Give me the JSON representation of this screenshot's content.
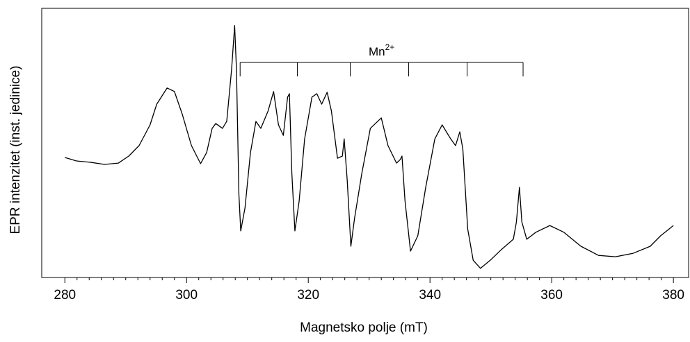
{
  "chart_data": {
    "type": "line",
    "x_label": "Magnetsko polje (mT)",
    "y_label": "EPR intenzitet (inst. jedinice)",
    "x": [
      280,
      281.9,
      284.2,
      286.5,
      288.8,
      290.5,
      292.2,
      294.0,
      295.1,
      296.8,
      298,
      299.3,
      300.8,
      302.3,
      303.3,
      304.2,
      304.8,
      305.9,
      306.6,
      307.4,
      307.9,
      308.2,
      308.6,
      308.9,
      309.6,
      310.5,
      311.4,
      312.2,
      313.4,
      314.3,
      315.1,
      315.9,
      316.6,
      316.9,
      317.3,
      317.8,
      318.5,
      319.4,
      320.6,
      321.4,
      322.2,
      323.1,
      323.8,
      324.8,
      325.6,
      325.9,
      326.4,
      327,
      327.6,
      328.8,
      330.2,
      332,
      333.1,
      334.5,
      335.1,
      335.4,
      335.9,
      336.8,
      338,
      339.3,
      340.8,
      342,
      343.4,
      344.2,
      344.9,
      345.4,
      346.2,
      347.1,
      348.3,
      349.9,
      351.7,
      353.7,
      354.2,
      354.7,
      355.1,
      355.9,
      357.4,
      359.7,
      362,
      364.8,
      367.7,
      370.5,
      373.4,
      376.2,
      377.9,
      380
    ],
    "series": [
      {
        "color": "#000000",
        "values": [
          44.6,
          43.3,
          42.8,
          42.0,
          42.5,
          45.1,
          49.0,
          56.7,
          64.4,
          70.4,
          69.1,
          60.6,
          49.0,
          42.3,
          46.4,
          55.4,
          57.2,
          55.4,
          58.0,
          77.3,
          93.6,
          77.3,
          30.9,
          17.3,
          25.8,
          46.4,
          58.0,
          55.4,
          61.9,
          69.1,
          56.7,
          52.8,
          67.0,
          68.3,
          38.7,
          17.3,
          28.4,
          51.5,
          67.0,
          68.3,
          64.4,
          68.8,
          61.9,
          44.3,
          45.1,
          51.5,
          36.1,
          11.6,
          21.9,
          38.7,
          55.4,
          59.3,
          49.0,
          42.5,
          43.8,
          45.1,
          28.4,
          9.8,
          15.5,
          33.5,
          51.5,
          56.7,
          51.5,
          49.0,
          54.1,
          47.7,
          18.0,
          6.4,
          3.4,
          6.4,
          10.3,
          14.2,
          20.6,
          33.5,
          20.6,
          14.2,
          16.8,
          19.3,
          16.8,
          11.6,
          8.2,
          7.7,
          9.0,
          11.6,
          15.5,
          19.3
        ]
      }
    ],
    "xlim": [
      276.2,
      382.5
    ],
    "ylim": [
      0,
      100
    ],
    "xticks": [
      280,
      300,
      320,
      340,
      360,
      380
    ],
    "xminorticks": [
      282,
      284,
      286,
      288,
      290,
      292,
      294,
      296,
      298,
      302,
      304,
      306,
      308,
      310,
      312,
      314,
      316,
      318,
      322,
      324,
      326,
      328,
      330,
      332,
      334,
      336,
      338,
      342,
      344,
      346,
      348,
      350,
      352,
      354,
      356,
      358,
      362,
      364,
      366,
      368,
      370,
      372,
      374,
      376,
      378
    ],
    "annotation": {
      "text": "Mn",
      "superscript": "2+",
      "bracket_x": [
        308.8,
        318.2,
        326.9,
        336.5,
        346.1,
        355.3
      ],
      "bracket_y": 79.9,
      "bracket_tick_y": 74.7
    }
  }
}
